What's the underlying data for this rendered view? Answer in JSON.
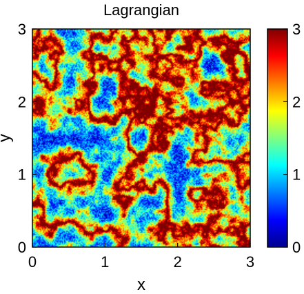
{
  "chart_data": {
    "type": "heatmap",
    "title": "Lagrangian",
    "xlabel": "x",
    "ylabel": "y",
    "xlim": [
      0,
      3
    ],
    "ylim": [
      0,
      3
    ],
    "xticks": [
      "0",
      "1",
      "2",
      "3"
    ],
    "yticks": [
      "0",
      "1",
      "2",
      "3"
    ],
    "colorbar": {
      "range": [
        0,
        3
      ],
      "ticks": [
        "0",
        "1",
        "2",
        "3"
      ],
      "colormap": "jet"
    },
    "grid": false,
    "field_description_values": {
      "typical": 0.6,
      "max": 3
    }
  },
  "colors": {
    "background": "#ffffff",
    "axis": "#000000"
  }
}
